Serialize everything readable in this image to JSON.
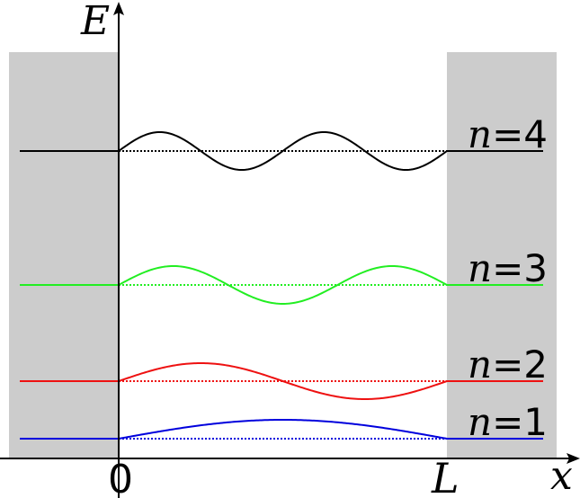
{
  "axes": {
    "y_label": "E",
    "x_label": "x",
    "origin_label": "0",
    "well_width_label": "L"
  },
  "colors": {
    "wall": "#cccccc",
    "axis": "#000000",
    "n1": "#0000dd",
    "n2": "#ee1111",
    "n3": "#22ee22",
    "n4": "#000000"
  },
  "levels": [
    {
      "n": 1,
      "label_var": "n",
      "label_rest": "=1",
      "color_key": "n1"
    },
    {
      "n": 2,
      "label_var": "n",
      "label_rest": "=2",
      "color_key": "n2"
    },
    {
      "n": 3,
      "label_var": "n",
      "label_rest": "=3",
      "color_key": "n3"
    },
    {
      "n": 4,
      "label_var": "n",
      "label_rest": "=4",
      "color_key": "n4"
    }
  ]
}
